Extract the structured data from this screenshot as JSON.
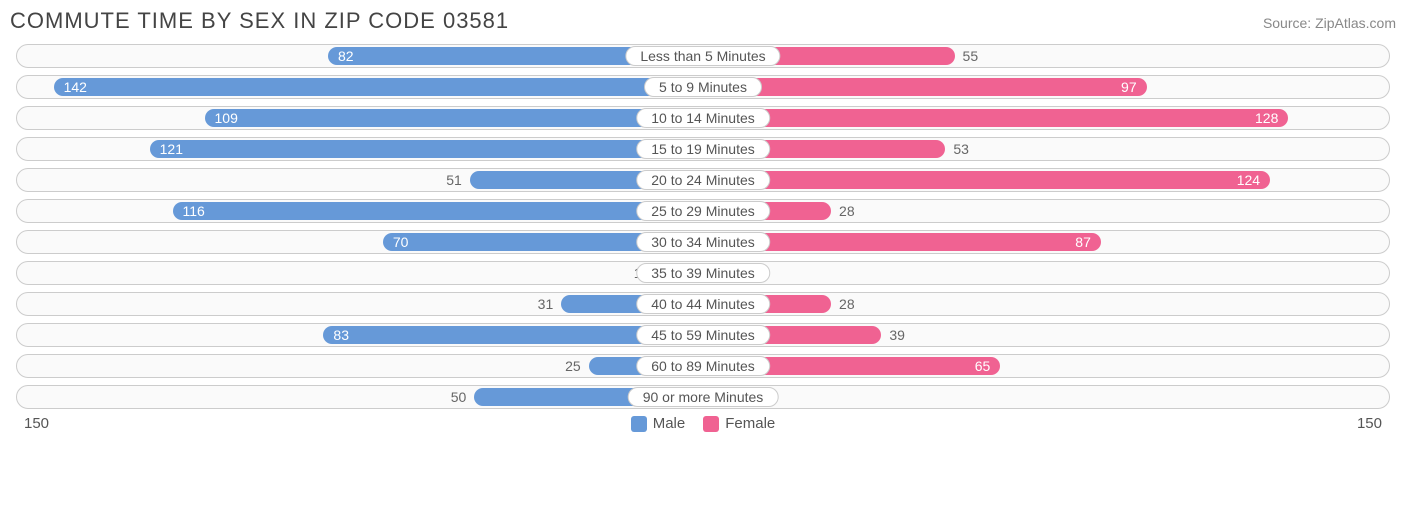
{
  "title": "COMMUTE TIME BY SEX IN ZIP CODE 03581",
  "source": "Source: ZipAtlas.com",
  "axis_max": 150,
  "axis_max_label_left": "150",
  "axis_max_label_right": "150",
  "colors": {
    "male": "#6699d8",
    "female": "#f06292",
    "pill_border": "#cccccc",
    "pill_bg": "#fafafa",
    "text": "#555555",
    "title": "#444444",
    "source": "#888888"
  },
  "legend": {
    "male": "Male",
    "female": "Female"
  },
  "value_inside_threshold_pct": 40,
  "rows": [
    {
      "label": "Less than 5 Minutes",
      "male": 82,
      "female": 55
    },
    {
      "label": "5 to 9 Minutes",
      "male": 142,
      "female": 97
    },
    {
      "label": "10 to 14 Minutes",
      "male": 109,
      "female": 128
    },
    {
      "label": "15 to 19 Minutes",
      "male": 121,
      "female": 53
    },
    {
      "label": "20 to 24 Minutes",
      "male": 51,
      "female": 124
    },
    {
      "label": "25 to 29 Minutes",
      "male": 116,
      "female": 28
    },
    {
      "label": "30 to 34 Minutes",
      "male": 70,
      "female": 87
    },
    {
      "label": "35 to 39 Minutes",
      "male": 10,
      "female": 0
    },
    {
      "label": "40 to 44 Minutes",
      "male": 31,
      "female": 28
    },
    {
      "label": "45 to 59 Minutes",
      "male": 83,
      "female": 39
    },
    {
      "label": "60 to 89 Minutes",
      "male": 25,
      "female": 65
    },
    {
      "label": "90 or more Minutes",
      "male": 50,
      "female": 0
    }
  ]
}
